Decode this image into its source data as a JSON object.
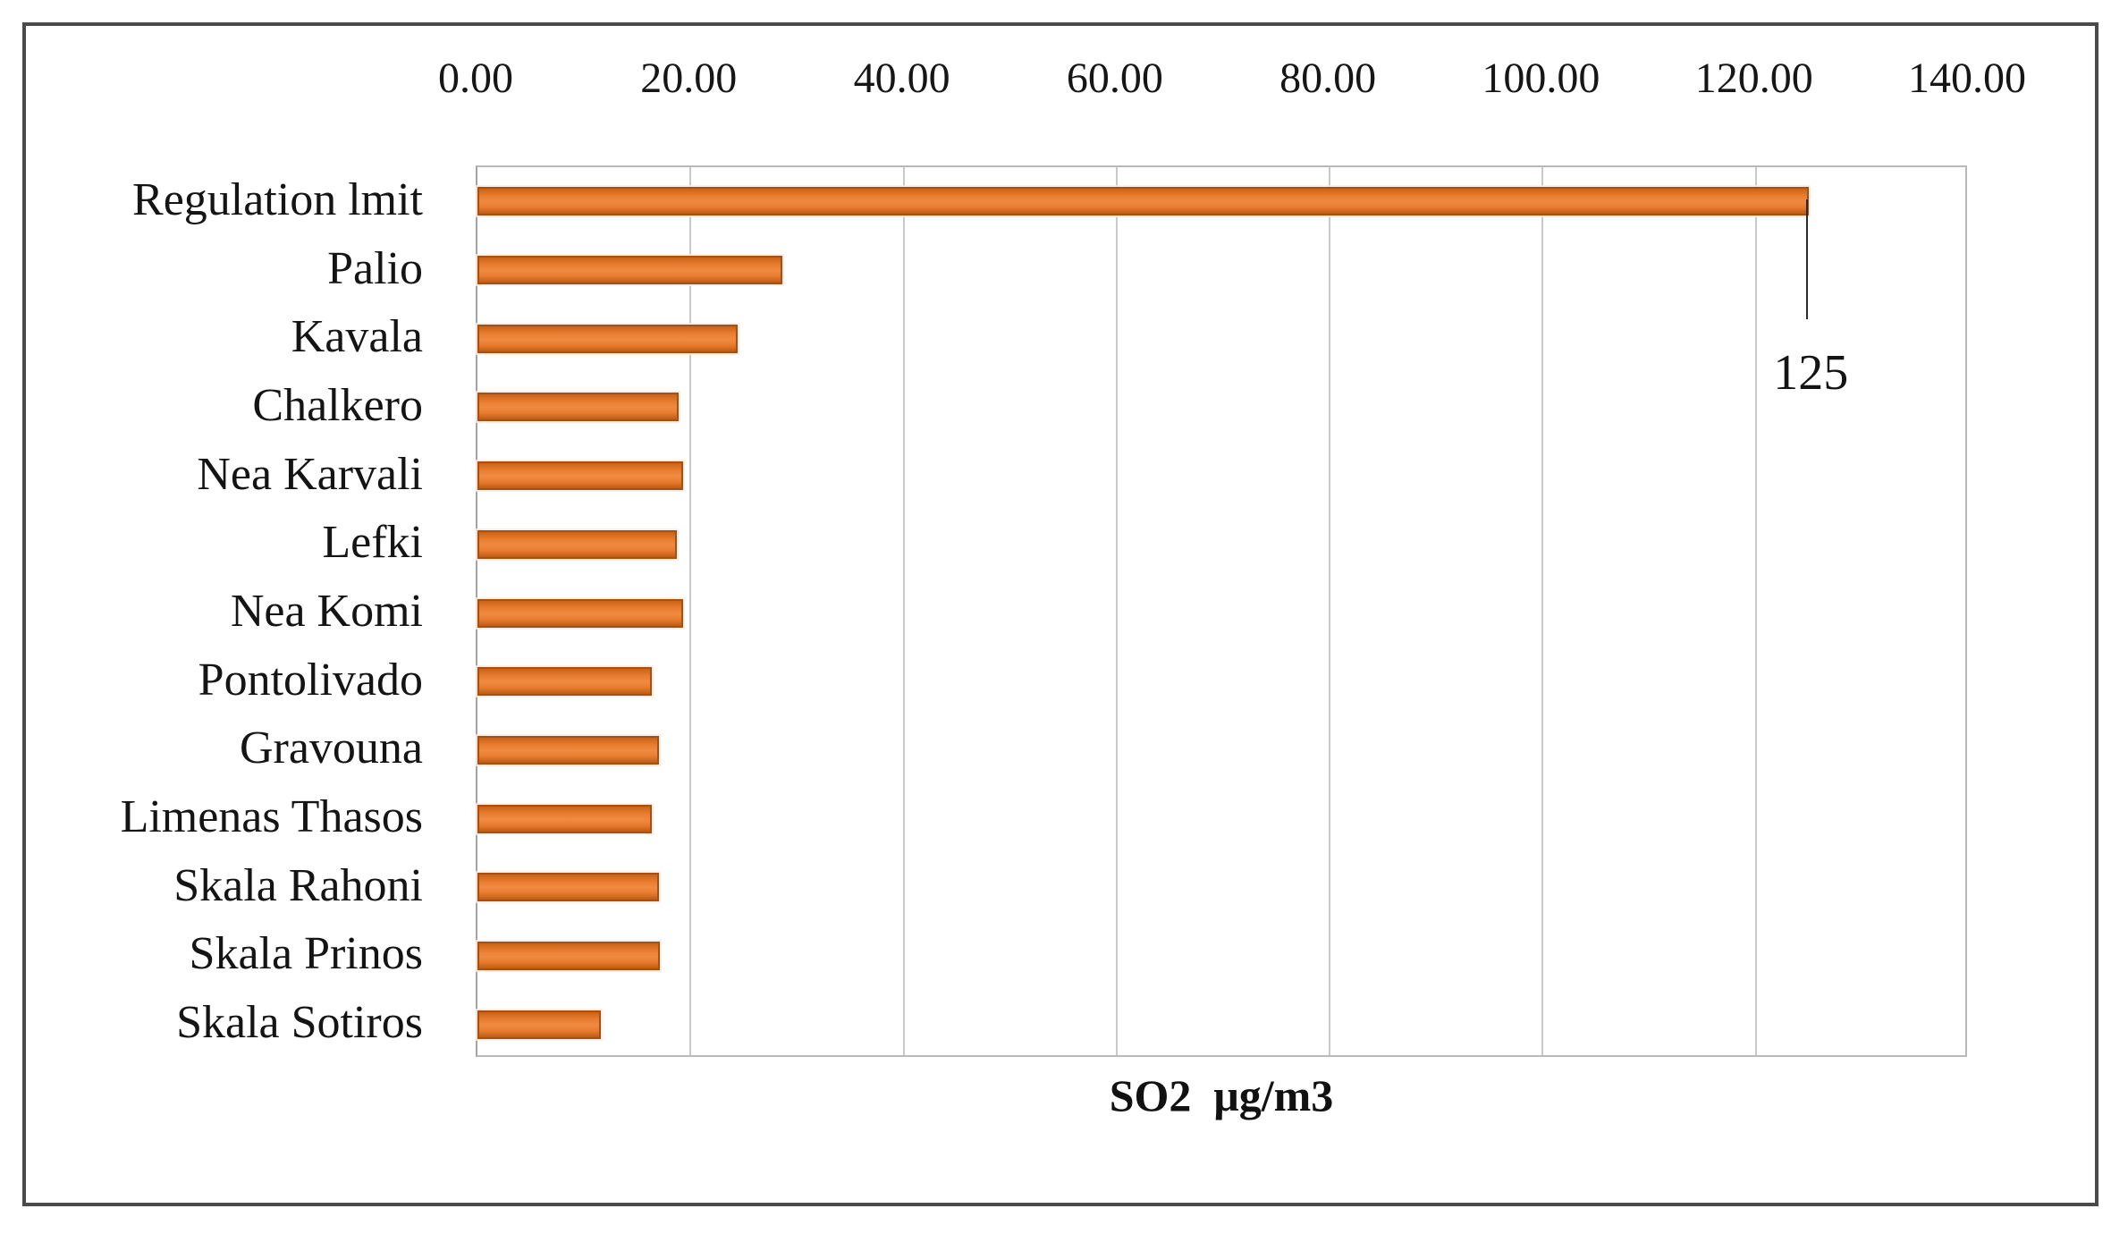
{
  "chart_data": {
    "type": "bar",
    "orientation": "horizontal",
    "title": "",
    "xlabel": "SO2  μg/m3",
    "ylabel": "",
    "categories": [
      "Regulation lmit",
      "Palio",
      "Kavala",
      "Chalkero",
      "Nea Karvali",
      "Lefki",
      "Nea Komi",
      "Pontolivado",
      "Gravouna",
      "Limenas Thasos",
      "Skala Rahoni",
      "Skala Prinos",
      "Skala Sotiros"
    ],
    "values": [
      125,
      28.6,
      24.4,
      18.9,
      19.3,
      18.7,
      19.3,
      16.4,
      17.0,
      16.4,
      17.0,
      17.1,
      11.6
    ],
    "xlim": [
      0,
      140
    ],
    "xtick_step": 20,
    "xtick_labels": [
      "0.00",
      "20.00",
      "40.00",
      "60.00",
      "80.00",
      "100.00",
      "120.00",
      "140.00"
    ],
    "grid": true,
    "legend": false,
    "annotation": {
      "text": "125",
      "category": "Regulation lmit",
      "value": 125
    },
    "colors": {
      "bar_fill": "#ED7D31",
      "bar_border": "#A8500F",
      "gridline": "#C9C9C9",
      "plot_border": "#B9B9B9",
      "outer_frame": "#4A4A4A",
      "text": "#141414",
      "leader_line": "#2B2B2B",
      "background": "#FFFFFF"
    }
  }
}
